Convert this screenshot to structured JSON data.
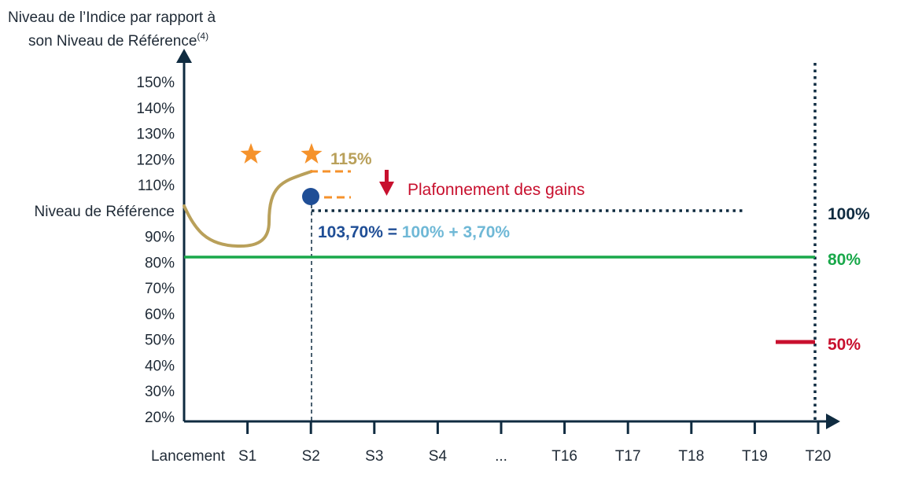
{
  "chart_data": {
    "type": "line",
    "ylabel_line1": "Niveau de l’Indice par rapport à",
    "ylabel_line2": "son Niveau de Référence",
    "ylabel_sup": "(4)",
    "y_ticks": [
      "150%",
      "140%",
      "130%",
      "120%",
      "110%",
      "Niveau de Référence",
      "90%",
      "80%",
      "70%",
      "60%",
      "50%",
      "40%",
      "30%",
      "20%"
    ],
    "y_tick_values": [
      150,
      140,
      130,
      120,
      110,
      100,
      90,
      80,
      70,
      60,
      50,
      40,
      30,
      20
    ],
    "x_ticks": [
      "Lancement",
      "S1",
      "S2",
      "S3",
      "S4",
      "...",
      "T16",
      "T17",
      "T18",
      "T19",
      "T20"
    ],
    "ylim": [
      20,
      150
    ],
    "series": [
      {
        "values": [
          {
            "x": "Lancement",
            "y": 102
          },
          {
            "x": "",
            "y": 92
          },
          {
            "x": "",
            "y": 87
          },
          {
            "x": "S1",
            "y": 85.5
          },
          {
            "x": "",
            "y": 86.5
          },
          {
            "x": "",
            "y": 89
          },
          {
            "x": "",
            "y": 101
          },
          {
            "x": "",
            "y": 108
          },
          {
            "x": "S2",
            "y": 115
          }
        ],
        "color": "#b9a05a"
      }
    ],
    "star_markers": [
      {
        "x": "S1",
        "y": 122
      },
      {
        "x": "S2",
        "y": 122
      }
    ],
    "point_marker": {
      "x": "S2",
      "y": 105,
      "color": "#1f4e96"
    },
    "reference_lines": [
      {
        "y": 100,
        "style": "dotted",
        "color": "#0f2b40"
      },
      {
        "y": 80,
        "style": "solid",
        "color": "#19a84a"
      }
    ],
    "annotations": {
      "cap_value": "115%",
      "cap_label": "Plafonnement des gains",
      "formula_total": "103,70%",
      "formula_eq": "=",
      "formula_rest": "100% + 3,70%",
      "right_100": "100%",
      "right_80": "80%",
      "right_50": "50%"
    },
    "colors": {
      "axis": "#0f2b40",
      "text": "#1f2a36",
      "curve": "#b9a05a",
      "star": "#f5922b",
      "dash_orange": "#f5922b",
      "cap_label": "#c8102e",
      "cap_arrow": "#c8102e",
      "formula_dark": "#1f4e96",
      "formula_light": "#6fb8d6",
      "green": "#19a84a",
      "red": "#c8102e"
    }
  }
}
